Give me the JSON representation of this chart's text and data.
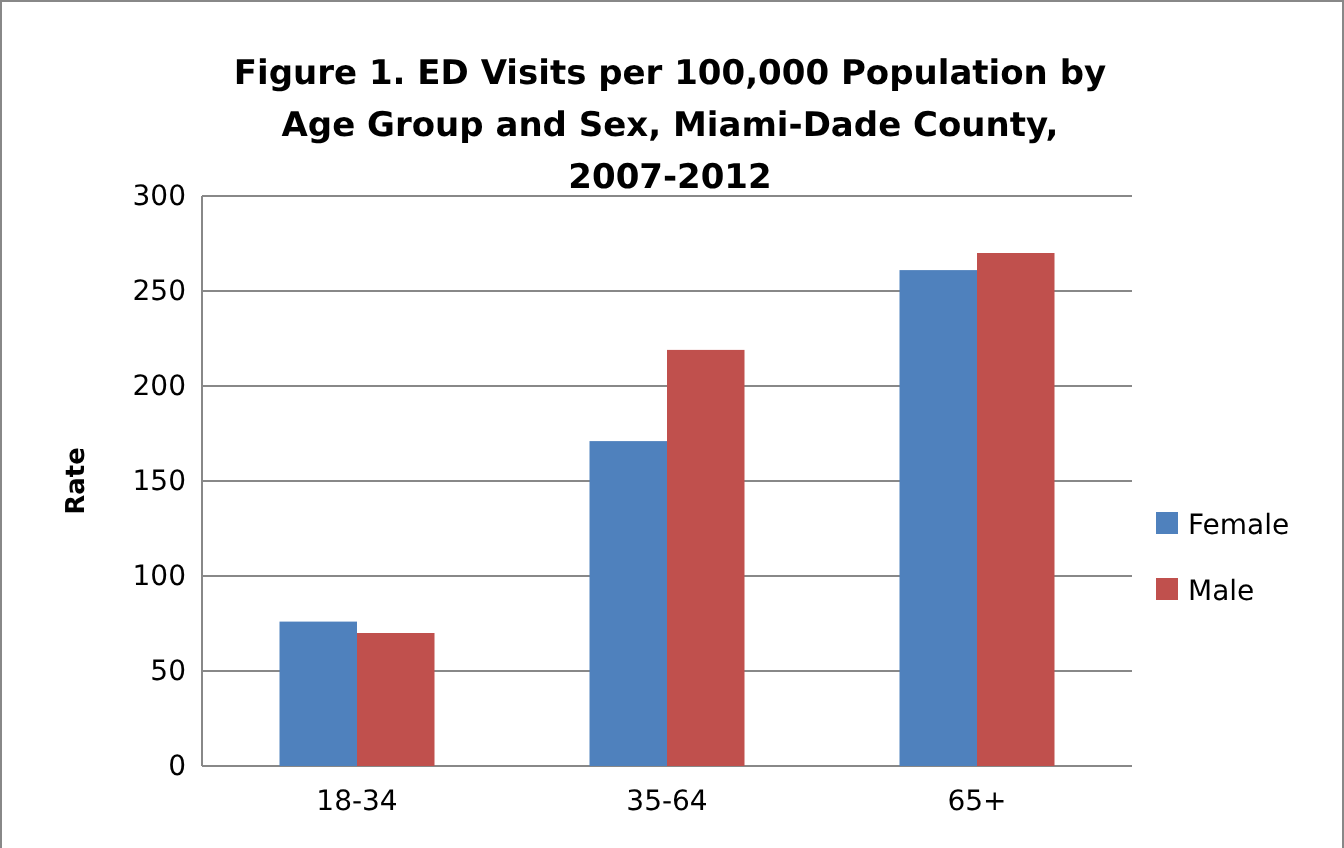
{
  "chart_data": {
    "type": "bar",
    "title": "Figure 1. ED Visits per 100,000 Population by Age Group and Sex, Miami-Dade County, 2007-2012",
    "ylabel": "Rate",
    "categories": [
      "18-34",
      "35-64",
      "65+"
    ],
    "series": [
      {
        "name": "Female",
        "color": "#4f81bd",
        "values": [
          76,
          171,
          261
        ]
      },
      {
        "name": "Male",
        "color": "#c0504d",
        "values": [
          70,
          219,
          270
        ]
      }
    ],
    "ylim": [
      0,
      300
    ],
    "yticks": [
      0,
      50,
      100,
      150,
      200,
      250,
      300
    ],
    "grid": "y",
    "legend": "right"
  }
}
